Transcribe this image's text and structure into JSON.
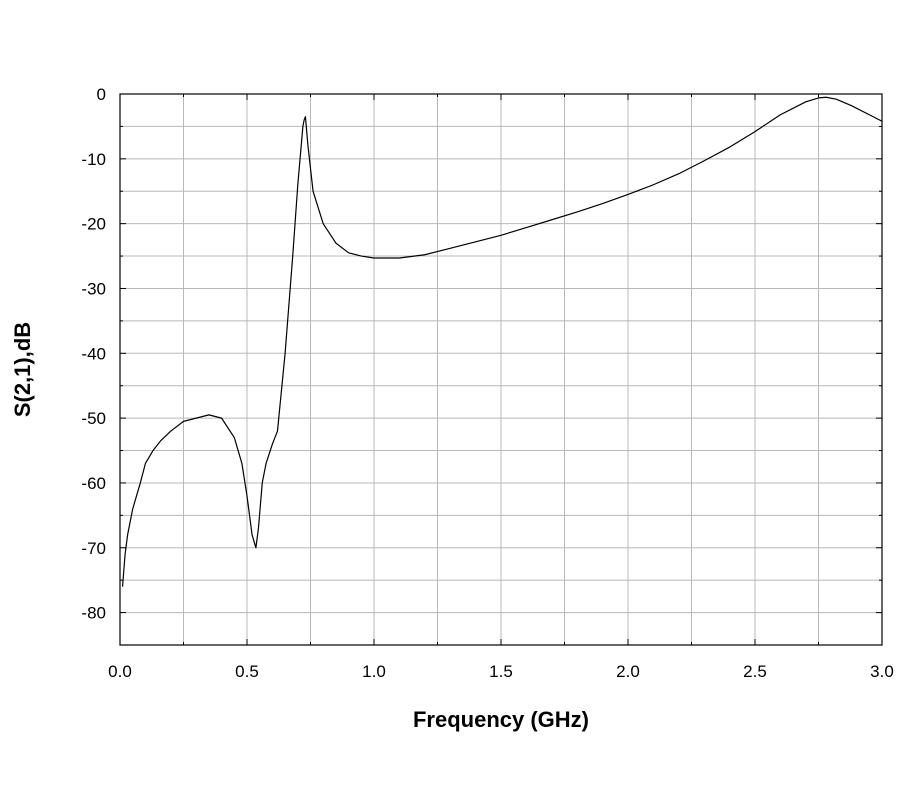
{
  "chart_data": {
    "type": "line",
    "title": "",
    "xlabel": "Frequency (GHz)",
    "ylabel": "S(2,1),dB",
    "xlim": [
      0.0,
      3.0
    ],
    "ylim": [
      -85,
      0
    ],
    "grid": true,
    "x_ticks": [
      0.0,
      0.5,
      1.0,
      1.5,
      2.0,
      2.5,
      3.0
    ],
    "x_tick_labels": [
      "0.0",
      "0.5",
      "1.0",
      "1.5",
      "2.0",
      "2.5",
      "3.0"
    ],
    "y_ticks": [
      0,
      -10,
      -20,
      -30,
      -40,
      -50,
      -60,
      -70,
      -80
    ],
    "y_tick_labels": [
      "0",
      "-10",
      "-20",
      "-30",
      "-40",
      "-50",
      "-60",
      "-70",
      "-80"
    ],
    "series": [
      {
        "x": [
          0.01,
          0.02,
          0.03,
          0.05,
          0.08,
          0.1,
          0.13,
          0.16,
          0.2,
          0.25,
          0.3,
          0.35,
          0.4,
          0.45,
          0.48,
          0.5,
          0.52,
          0.535,
          0.545,
          0.56,
          0.575,
          0.6,
          0.62,
          0.65,
          0.68,
          0.7,
          0.72,
          0.725,
          0.73,
          0.74,
          0.76,
          0.8,
          0.85,
          0.9,
          0.95,
          1.0,
          1.1,
          1.2,
          1.3,
          1.4,
          1.5,
          1.6,
          1.7,
          1.8,
          1.9,
          2.0,
          2.1,
          2.2,
          2.3,
          2.4,
          2.5,
          2.6,
          2.7,
          2.75,
          2.78,
          2.82,
          2.88,
          2.95,
          3.0
        ],
        "y": [
          -76,
          -71,
          -68,
          -64,
          -60,
          -57,
          -55,
          -53.5,
          -52,
          -50.5,
          -50,
          -49.5,
          -50,
          -53,
          -57,
          -62,
          -68,
          -70,
          -67,
          -60,
          -57,
          -54,
          -52,
          -40,
          -25,
          -14,
          -5,
          -4,
          -3.5,
          -8,
          -15,
          -20,
          -23,
          -24.5,
          -25,
          -25.3,
          -25.3,
          -24.8,
          -23.8,
          -22.8,
          -21.8,
          -20.6,
          -19.4,
          -18.2,
          -16.9,
          -15.5,
          -14,
          -12.3,
          -10.3,
          -8.2,
          -5.8,
          -3.2,
          -1.2,
          -0.6,
          -0.5,
          -0.8,
          -1.8,
          -3.2,
          -4.2
        ]
      }
    ]
  }
}
